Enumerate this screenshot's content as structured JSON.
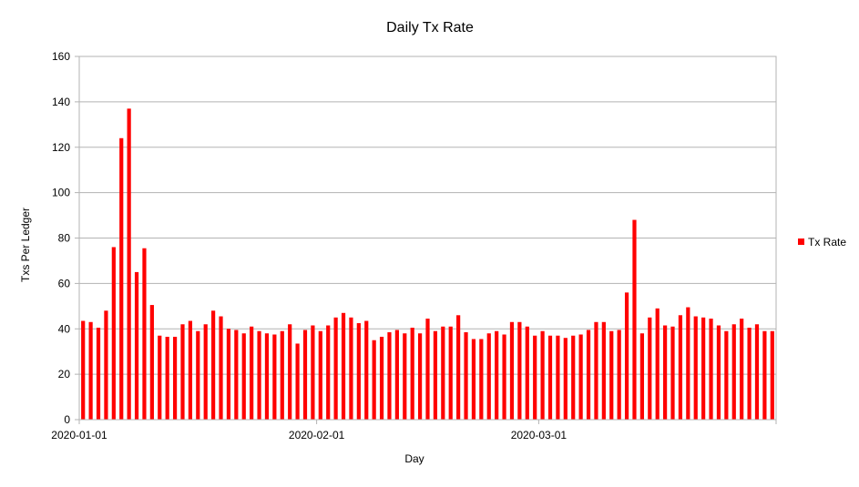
{
  "chart_data": {
    "type": "bar",
    "title": "Daily Tx Rate",
    "xlabel": "Day",
    "ylabel": "Txs Per Ledger",
    "ylim": [
      0,
      160
    ],
    "yticks": [
      0,
      20,
      40,
      60,
      80,
      100,
      120,
      140,
      160
    ],
    "grid": true,
    "legend_position": "right",
    "x_tick_labels": [
      {
        "label": "2020-01-01",
        "index": 0
      },
      {
        "label": "2020-02-01",
        "index": 31
      },
      {
        "label": "2020-03-01",
        "index": 60
      }
    ],
    "bar_color": "#ff0000",
    "grid_color": "#b3b3b3",
    "series": [
      {
        "name": "Tx Rate",
        "values": [
          43.5,
          43,
          40.5,
          48,
          76,
          124,
          137,
          65,
          75.5,
          50.5,
          37,
          36.5,
          36.5,
          42,
          43.5,
          39,
          42,
          48,
          45.5,
          40,
          39.5,
          38,
          41,
          39,
          38,
          37.5,
          39,
          42,
          33.5,
          39.5,
          41.5,
          39,
          41.5,
          45,
          47,
          45,
          42.5,
          43.5,
          35,
          36.5,
          38.5,
          39.5,
          38,
          40.5,
          38,
          44.5,
          39,
          41,
          41,
          46,
          38.5,
          35.5,
          35.5,
          38,
          39,
          37.5,
          43,
          43,
          41,
          37,
          39,
          37,
          37,
          36,
          37,
          37.5,
          39.5,
          43,
          43,
          39,
          39.5,
          56,
          88,
          38,
          45,
          49,
          41.5,
          41,
          46,
          49.5,
          45.5,
          45,
          44.5,
          41.5,
          39,
          42,
          44.5,
          40.5,
          42,
          39,
          39
        ]
      }
    ]
  }
}
